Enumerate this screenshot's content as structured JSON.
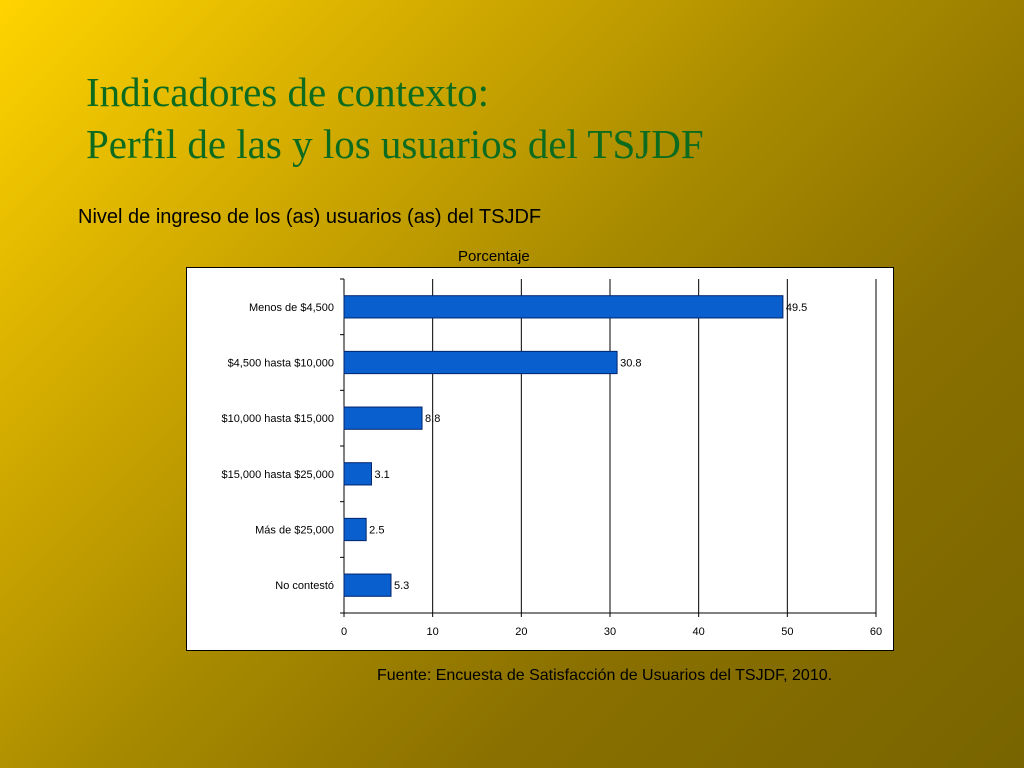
{
  "slide": {
    "title_line1": "Indicadores de contexto:",
    "title_line2": "Perfil de las y los usuarios del TSJDF",
    "subtitle": "Nivel de ingreso de los (as) usuarios (as) del TSJDF",
    "unit_label": "Porcentaje",
    "source": "Fuente: Encuesta de Satisfacción de Usuarios del TSJDF, 2010."
  },
  "colors": {
    "bar_fill": "#0a5fcf",
    "bar_stroke": "#00246b",
    "title": "#0d6b1f"
  },
  "chart_data": {
    "type": "bar",
    "orientation": "horizontal",
    "categories": [
      "Menos de $4,500",
      "$4,500 hasta $10,000",
      "$10,000 hasta $15,000",
      "$15,000 hasta $25,000",
      "Más de $25,000",
      "No contestó"
    ],
    "values": [
      49.5,
      30.8,
      8.8,
      3.1,
      2.5,
      5.3
    ],
    "value_labels": [
      "49.5",
      "30.8",
      "8.8",
      "3.1",
      "2.5",
      "5.3"
    ],
    "title": "Porcentaje",
    "xlabel": "",
    "ylabel": "",
    "xlim": [
      0,
      60
    ],
    "xticks": [
      0,
      10,
      20,
      30,
      40,
      50,
      60
    ],
    "grid": true
  }
}
